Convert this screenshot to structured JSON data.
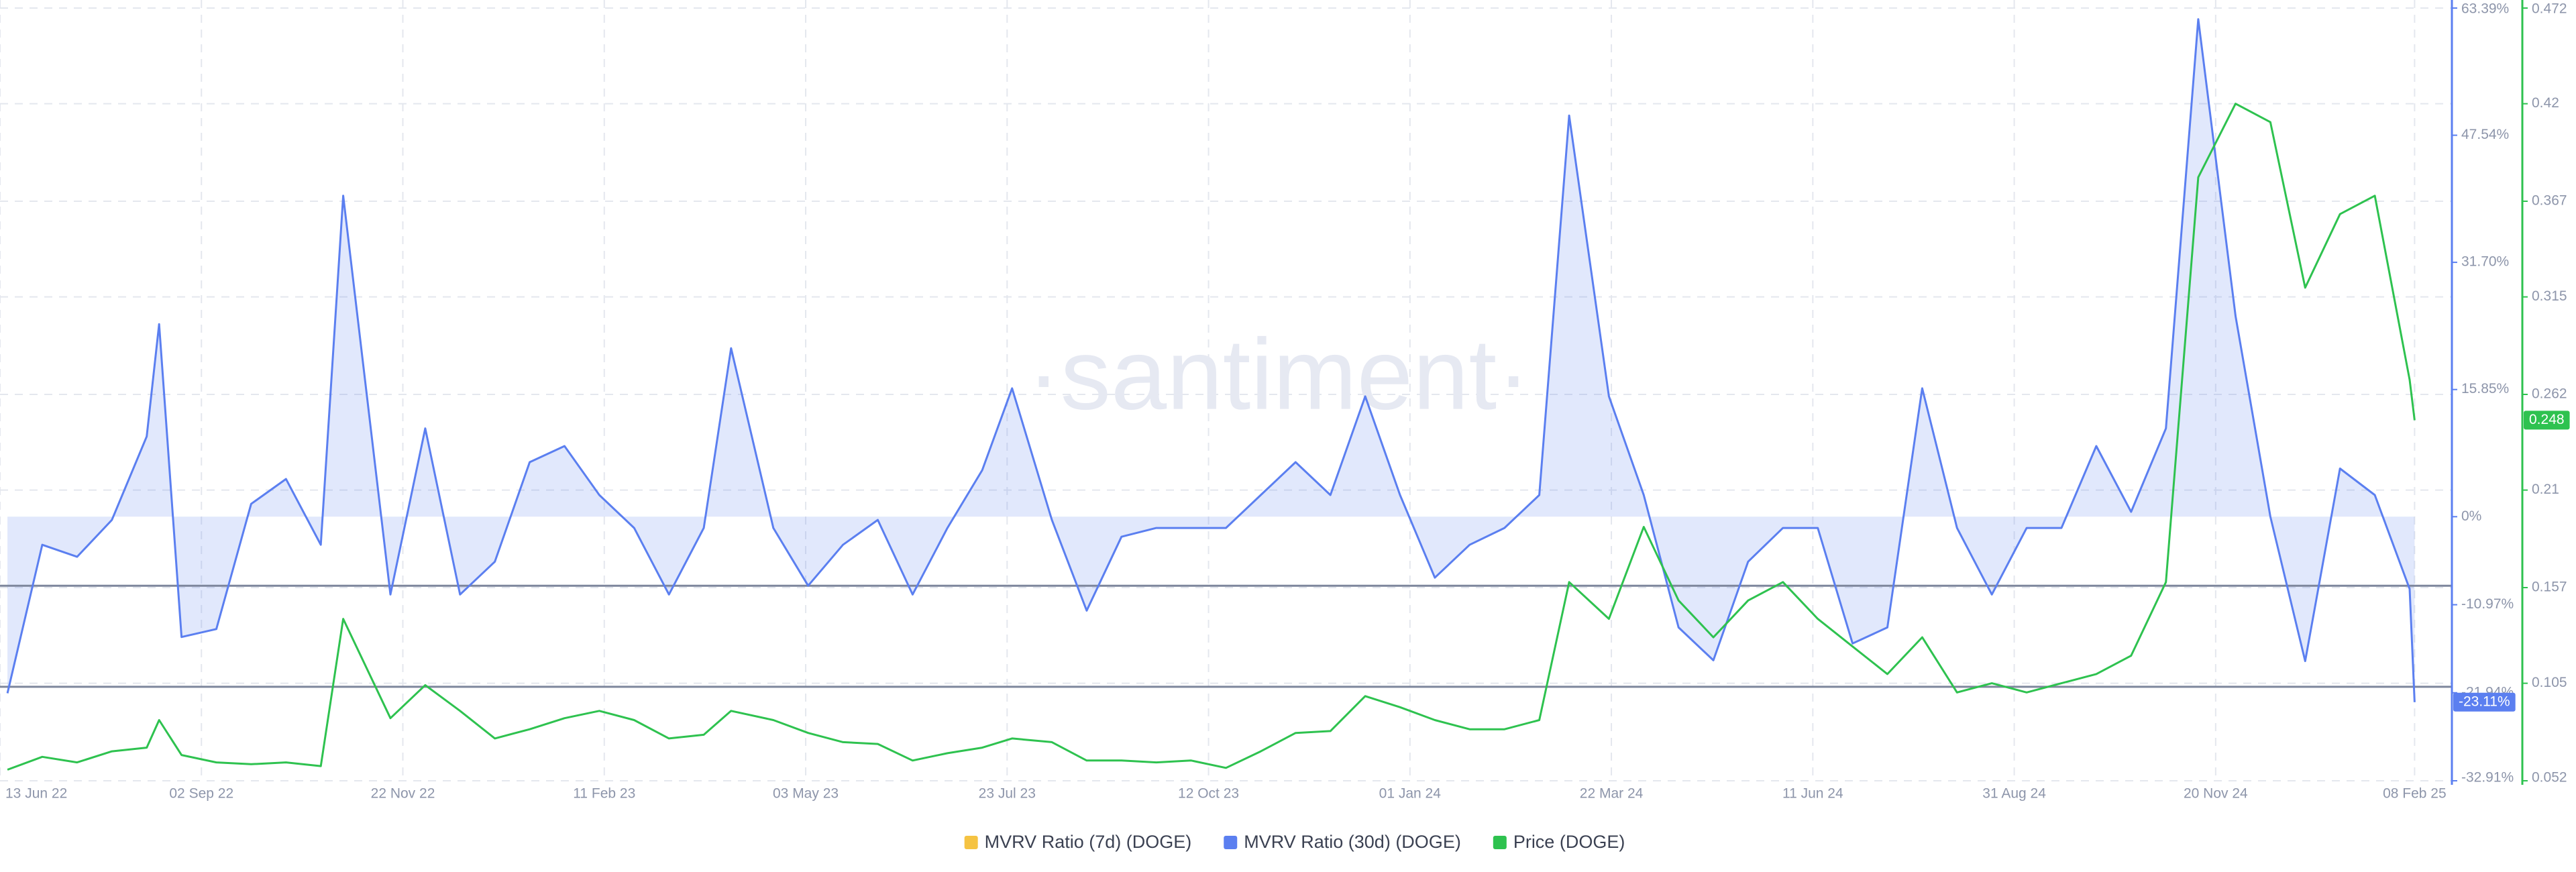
{
  "chart_data": {
    "type": "line",
    "watermark": "·santiment·",
    "x": [
      "2022-06-16",
      "2022-06-30",
      "2022-07-14",
      "2022-07-28",
      "2022-08-11",
      "2022-08-16",
      "2022-08-25",
      "2022-09-08",
      "2022-09-22",
      "2022-10-06",
      "2022-10-20",
      "2022-10-29",
      "2022-11-17",
      "2022-12-01",
      "2022-12-15",
      "2022-12-29",
      "2023-01-12",
      "2023-01-26",
      "2023-02-09",
      "2023-02-23",
      "2023-03-09",
      "2023-03-23",
      "2023-04-03",
      "2023-04-20",
      "2023-05-04",
      "2023-05-18",
      "2023-06-01",
      "2023-06-15",
      "2023-06-29",
      "2023-07-13",
      "2023-07-25",
      "2023-08-10",
      "2023-08-24",
      "2023-09-07",
      "2023-09-21",
      "2023-10-05",
      "2023-10-19",
      "2023-11-02",
      "2023-11-16",
      "2023-11-30",
      "2023-12-14",
      "2023-12-28",
      "2024-01-11",
      "2024-01-25",
      "2024-02-08",
      "2024-02-22",
      "2024-03-05",
      "2024-03-21",
      "2024-04-04",
      "2024-04-18",
      "2024-05-02",
      "2024-05-16",
      "2024-05-30",
      "2024-06-13",
      "2024-06-27",
      "2024-07-11",
      "2024-07-25",
      "2024-08-08",
      "2024-08-22",
      "2024-09-05",
      "2024-09-19",
      "2024-10-03",
      "2024-10-17",
      "2024-10-31",
      "2024-11-13",
      "2024-11-28",
      "2024-12-12",
      "2024-12-26",
      "2025-01-09",
      "2025-01-23",
      "2025-02-06",
      "2025-02-08"
    ],
    "xlim": [
      "2022-06-13",
      "2025-02-23"
    ],
    "xticks": [
      {
        "value": "2022-06-13",
        "label": "13 Jun 22"
      },
      {
        "value": "2022-09-02",
        "label": "02 Sep 22"
      },
      {
        "value": "2022-11-22",
        "label": "22 Nov 22"
      },
      {
        "value": "2023-02-11",
        "label": "11 Feb 23"
      },
      {
        "value": "2023-05-03",
        "label": "03 May 23"
      },
      {
        "value": "2023-07-23",
        "label": "23 Jul 23"
      },
      {
        "value": "2023-10-12",
        "label": "12 Oct 23"
      },
      {
        "value": "2024-01-01",
        "label": "01 Jan 24"
      },
      {
        "value": "2024-03-22",
        "label": "22 Mar 24"
      },
      {
        "value": "2024-06-11",
        "label": "11 Jun 24"
      },
      {
        "value": "2024-08-31",
        "label": "31 Aug 24"
      },
      {
        "value": "2024-11-20",
        "label": "20 Nov 24"
      },
      {
        "value": "2025-02-08",
        "label": "08 Feb 25"
      }
    ],
    "ylim": [
      -32.91,
      63.39
    ],
    "yticks": [
      {
        "value": 63.39,
        "label": "63.39%"
      },
      {
        "value": 47.54,
        "label": "47.54%"
      },
      {
        "value": 31.7,
        "label": "31.70%"
      },
      {
        "value": 15.85,
        "label": "15.85%"
      },
      {
        "value": 0,
        "label": "0%"
      },
      {
        "value": -10.97,
        "label": "-10.97%"
      },
      {
        "value": -21.94,
        "label": "-21.94%"
      },
      {
        "value": -32.91,
        "label": "-32.91%"
      }
    ],
    "y2lim": [
      0.052,
      0.472
    ],
    "y2ticks": [
      0.472,
      0.42,
      0.367,
      0.315,
      0.262,
      0.21,
      0.157,
      0.105,
      0.052
    ],
    "grid": true,
    "reference_lines": [
      -8.6,
      -21.2
    ],
    "series": [
      {
        "name": "MVRV Ratio (7d) (DOGE)",
        "color": "#f5c342",
        "visible": false
      },
      {
        "name": "MVRV Ratio (30d) (DOGE)",
        "color": "#5b7ff0",
        "area": true,
        "last_label": "-23.11%",
        "values": [
          -22,
          -3.5,
          -5,
          -0.4,
          10,
          24,
          -15,
          -14,
          1.6,
          4.7,
          -3.5,
          40,
          -9.7,
          11,
          -9.7,
          -5.6,
          6.8,
          8.8,
          2.7,
          -1.4,
          -9.7,
          -1.4,
          21,
          -1.4,
          -8.6,
          -3.5,
          -0.4,
          -9.7,
          -1.4,
          5.8,
          16,
          -0.4,
          -11.7,
          -2.5,
          -1.4,
          -1.4,
          -1.4,
          2.7,
          6.8,
          2.7,
          15,
          2.7,
          -7.6,
          -3.5,
          -1.4,
          2.7,
          50,
          15,
          2.7,
          -13.8,
          -17.9,
          -5.6,
          -1.4,
          -1.4,
          -15.8,
          -13.8,
          16,
          -1.4,
          -9.7,
          -1.4,
          -1.4,
          8.8,
          0.6,
          11,
          62,
          25,
          0,
          -18,
          6,
          2.7,
          -9,
          -23.11
        ]
      },
      {
        "name": "Price (DOGE)",
        "color": "#2ec24f",
        "axis": "y2",
        "last_label": "0.248",
        "values": [
          0.058,
          0.065,
          0.062,
          0.068,
          0.07,
          0.085,
          0.066,
          0.062,
          0.061,
          0.062,
          0.06,
          0.14,
          0.086,
          0.104,
          0.09,
          0.075,
          0.08,
          0.086,
          0.09,
          0.085,
          0.075,
          0.077,
          0.09,
          0.085,
          0.078,
          0.073,
          0.072,
          0.063,
          0.067,
          0.07,
          0.075,
          0.073,
          0.063,
          0.063,
          0.062,
          0.063,
          0.059,
          0.068,
          0.078,
          0.079,
          0.098,
          0.092,
          0.085,
          0.08,
          0.08,
          0.085,
          0.16,
          0.14,
          0.19,
          0.15,
          0.13,
          0.15,
          0.16,
          0.14,
          0.125,
          0.11,
          0.13,
          0.1,
          0.105,
          0.1,
          0.105,
          0.11,
          0.12,
          0.16,
          0.38,
          0.42,
          0.41,
          0.32,
          0.36,
          0.37,
          0.27,
          0.248
        ]
      }
    ]
  }
}
